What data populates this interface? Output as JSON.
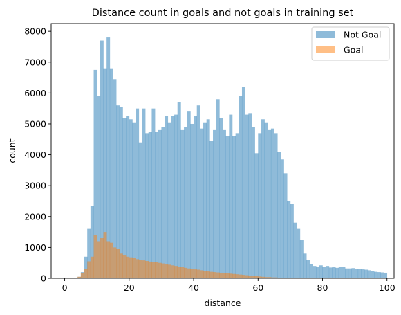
{
  "chart_data": {
    "type": "bar",
    "title": "Distance count in goals and not goals in training set",
    "xlabel": "distance",
    "ylabel": "count",
    "xlim": [
      -4.2,
      102.2
    ],
    "ylim": [
      0,
      8250
    ],
    "xticks": [
      0,
      20,
      40,
      60,
      80,
      100
    ],
    "yticks": [
      0,
      1000,
      2000,
      3000,
      4000,
      5000,
      6000,
      7000,
      8000
    ],
    "bin_start": 0,
    "bin_width": 1,
    "legend_position": "upper-right",
    "series": [
      {
        "name": "Not Goal",
        "color": "#1f77b4",
        "opacity": 0.5,
        "values": [
          0,
          0,
          0,
          0,
          50,
          200,
          700,
          1600,
          2350,
          6750,
          5900,
          7700,
          6800,
          7800,
          6800,
          6450,
          5600,
          5550,
          5200,
          5250,
          5150,
          5050,
          5500,
          4400,
          5500,
          4700,
          4750,
          5500,
          4750,
          4800,
          4900,
          5250,
          5050,
          5250,
          5300,
          5700,
          4800,
          4900,
          5400,
          5000,
          5250,
          5600,
          4850,
          5050,
          5150,
          4450,
          4800,
          5800,
          5200,
          4800,
          4600,
          5300,
          4600,
          4700,
          5900,
          6200,
          5300,
          5350,
          4900,
          4050,
          4700,
          5150,
          5050,
          4800,
          4850,
          4700,
          4100,
          3850,
          3400,
          2500,
          2400,
          1800,
          1600,
          1250,
          800,
          600,
          450,
          400,
          380,
          420,
          380,
          400,
          350,
          370,
          340,
          380,
          360,
          320,
          320,
          330,
          300,
          310,
          290,
          280,
          260,
          230,
          210,
          200,
          190,
          180
        ]
      },
      {
        "name": "Goal",
        "color": "#ff7f0e",
        "opacity": 0.5,
        "values": [
          0,
          0,
          0,
          0,
          50,
          160,
          300,
          550,
          700,
          1400,
          1200,
          1300,
          1500,
          1200,
          1150,
          1000,
          950,
          800,
          750,
          700,
          680,
          650,
          620,
          600,
          580,
          560,
          540,
          520,
          520,
          500,
          480,
          460,
          440,
          420,
          400,
          380,
          360,
          340,
          320,
          300,
          290,
          280,
          260,
          240,
          230,
          210,
          200,
          190,
          180,
          170,
          160,
          150,
          140,
          130,
          120,
          110,
          100,
          90,
          80,
          70,
          60,
          50,
          40,
          40,
          30,
          30,
          20,
          20,
          20,
          20,
          10,
          10,
          10,
          10,
          10,
          10,
          10,
          10,
          10,
          10,
          10,
          10,
          10,
          10,
          10,
          10,
          10,
          10,
          10,
          10,
          10,
          10,
          10,
          10,
          10,
          10,
          10,
          10,
          10,
          10
        ]
      }
    ]
  }
}
